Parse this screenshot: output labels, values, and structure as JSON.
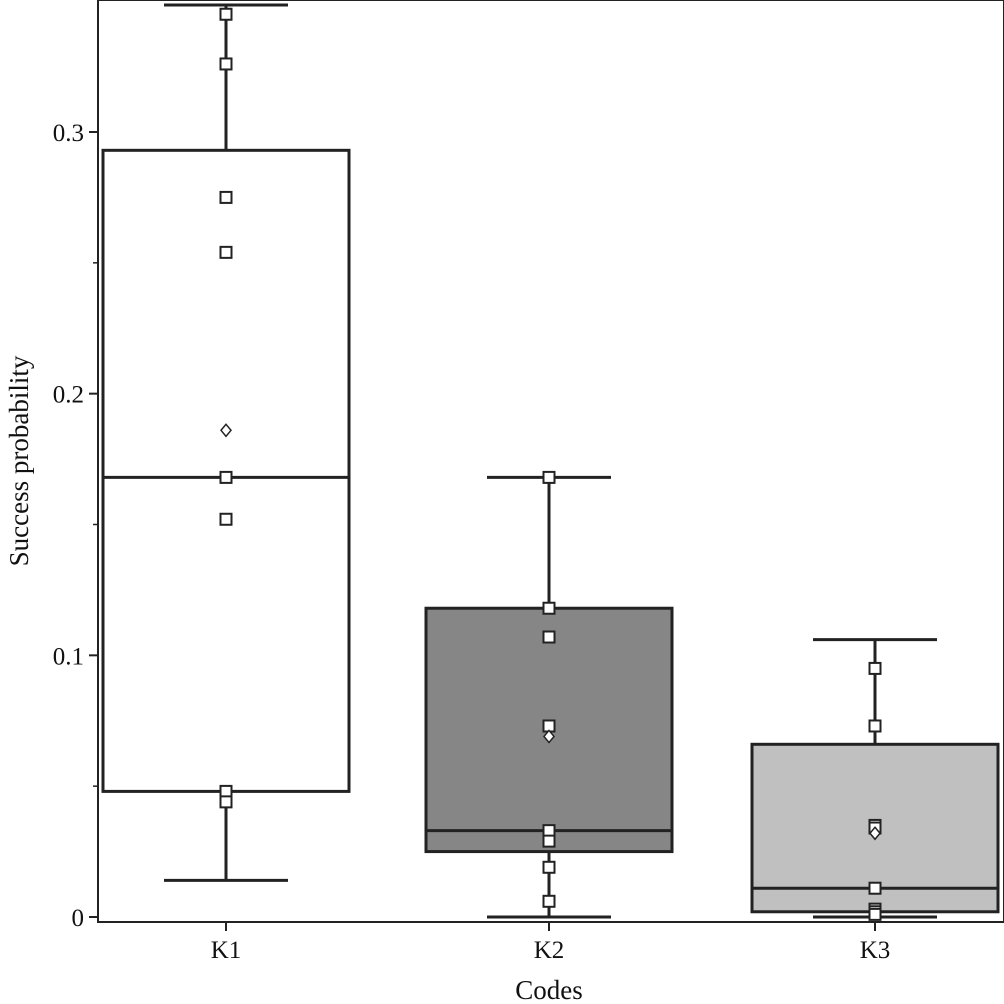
{
  "chart_data": {
    "type": "box",
    "xlabel": "Codes",
    "ylabel": "Success probability",
    "categories": [
      "K1",
      "K2",
      "K3"
    ],
    "ylim": [
      -0.002,
      0.35
    ],
    "yticks": [
      0,
      0.1,
      0.2,
      0.3
    ],
    "ytick_labels": [
      "0",
      "0.1",
      "0.2",
      "0.3"
    ],
    "grid": false,
    "boxes": [
      {
        "name": "K1",
        "fill": "#ffffff",
        "whisker_low": 0.014,
        "q1": 0.048,
        "median": 0.168,
        "q3": 0.293,
        "whisker_high": 0.35,
        "mean": 0.186,
        "points": [
          0.345,
          0.326,
          0.275,
          0.254,
          0.168,
          0.152,
          0.048,
          0.044
        ]
      },
      {
        "name": "K2",
        "fill": "#868686",
        "whisker_low": 0.0,
        "q1": 0.025,
        "median": 0.033,
        "q3": 0.118,
        "whisker_high": 0.168,
        "mean": 0.069,
        "points": [
          0.168,
          0.118,
          0.107,
          0.073,
          0.033,
          0.029,
          0.019,
          0.006
        ]
      },
      {
        "name": "K3",
        "fill": "#c0c0c0",
        "whisker_low": 0.0,
        "q1": 0.002,
        "median": 0.011,
        "q3": 0.066,
        "whisker_high": 0.106,
        "mean": 0.032,
        "points": [
          0.095,
          0.073,
          0.035,
          0.034,
          0.011,
          0.003,
          0.002,
          0.001
        ]
      }
    ]
  }
}
